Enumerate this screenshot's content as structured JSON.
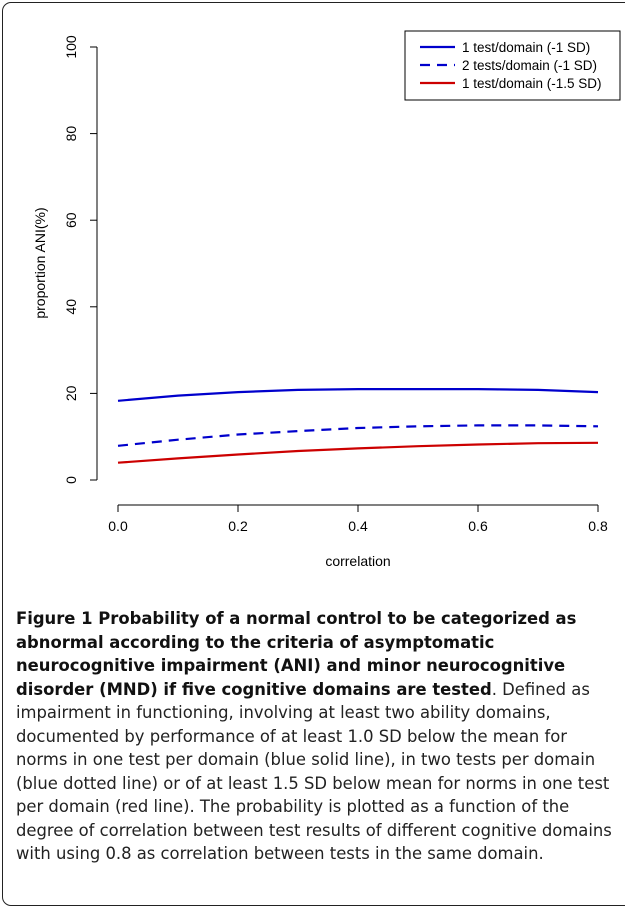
{
  "chart_data": {
    "type": "line",
    "xlabel": "correlation",
    "ylabel": "proportion ANI(%)",
    "xlim": [
      0.0,
      0.8
    ],
    "ylim": [
      0,
      100
    ],
    "x_ticks": [
      "0.0",
      "0.2",
      "0.4",
      "0.6",
      "0.8"
    ],
    "y_ticks": [
      "0",
      "20",
      "40",
      "60",
      "80",
      "100"
    ],
    "grid": false,
    "legend_position": "top-right",
    "x": [
      0.0,
      0.1,
      0.2,
      0.3,
      0.4,
      0.5,
      0.6,
      0.7,
      0.8
    ],
    "series": [
      {
        "name": "1 test/domain (-1 SD)",
        "color": "#0000cc",
        "dash": "solid",
        "values": [
          18.3,
          19.5,
          20.3,
          20.8,
          21.0,
          21.0,
          21.0,
          20.8,
          20.3
        ]
      },
      {
        "name": "2 tests/domain (-1 SD)",
        "color": "#0000cc",
        "dash": "dashed",
        "values": [
          7.9,
          9.3,
          10.5,
          11.3,
          12.0,
          12.4,
          12.6,
          12.6,
          12.4
        ]
      },
      {
        "name": "1 test/domain (-1.5 SD)",
        "color": "#cc0000",
        "dash": "solid",
        "values": [
          4.0,
          5.0,
          5.9,
          6.7,
          7.3,
          7.8,
          8.2,
          8.5,
          8.6
        ]
      }
    ]
  },
  "caption": {
    "title": "Figure 1 Probability of a normal control to be categorized as abnormal according to the criteria of asymptomatic neurocognitive impairment (ANI) and minor neurocognitive disorder (MND) if five cognitive domains are tested",
    "body": ". Defined as impairment in functioning, involving at least two ability domains, documented by performance of at least 1.0 SD below the mean for norms in one test per domain (blue solid line), in two tests per domain (blue dotted line) or of at least 1.5 SD below mean for norms in one test per domain (red line). The probability is plotted as a function of the degree of correlation between test results of different cognitive domains with using 0.8 as correlation between tests in the same domain."
  }
}
